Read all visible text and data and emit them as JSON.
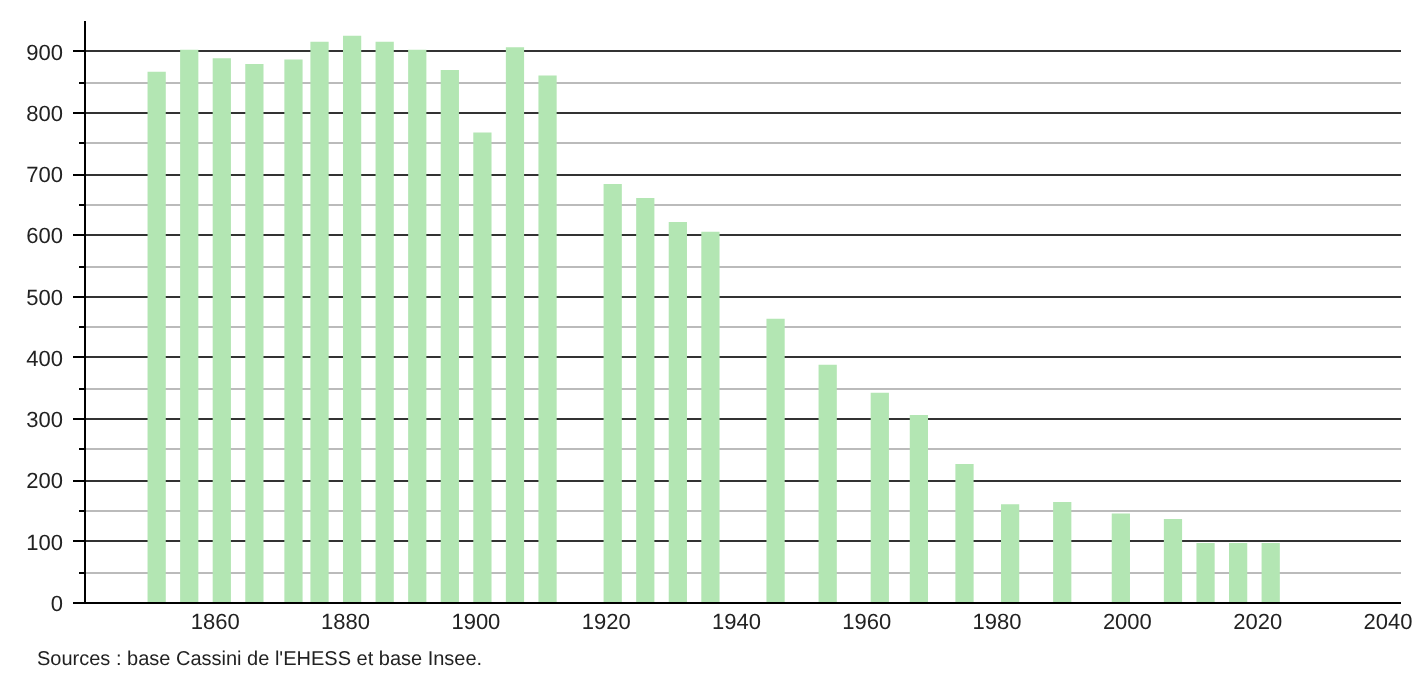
{
  "chart_data": {
    "type": "bar",
    "x": [
      1851,
      1856,
      1861,
      1866,
      1872,
      1876,
      1881,
      1886,
      1891,
      1896,
      1901,
      1906,
      1911,
      1921,
      1926,
      1931,
      1936,
      1946,
      1954,
      1962,
      1968,
      1975,
      1982,
      1990,
      1999,
      2007,
      2012,
      2017,
      2022
    ],
    "values": [
      867,
      903,
      889,
      880,
      887,
      916,
      926,
      916,
      903,
      870,
      768,
      907,
      861,
      684,
      661,
      622,
      606,
      464,
      389,
      343,
      307,
      227,
      161,
      165,
      146,
      137,
      98,
      98,
      98
    ],
    "color": "#b3e6b3",
    "xlim": [
      1840,
      2042
    ],
    "xticks": [
      1860,
      1880,
      1900,
      1920,
      1940,
      1960,
      1980,
      2000,
      2020,
      2040
    ],
    "ylim": [
      0,
      950
    ],
    "yticks": [
      0,
      100,
      200,
      300,
      400,
      500,
      600,
      700,
      800,
      900
    ],
    "grid": "y",
    "annotations": [
      "Sources : base Cassini de l'EHESS et base Insee."
    ]
  }
}
